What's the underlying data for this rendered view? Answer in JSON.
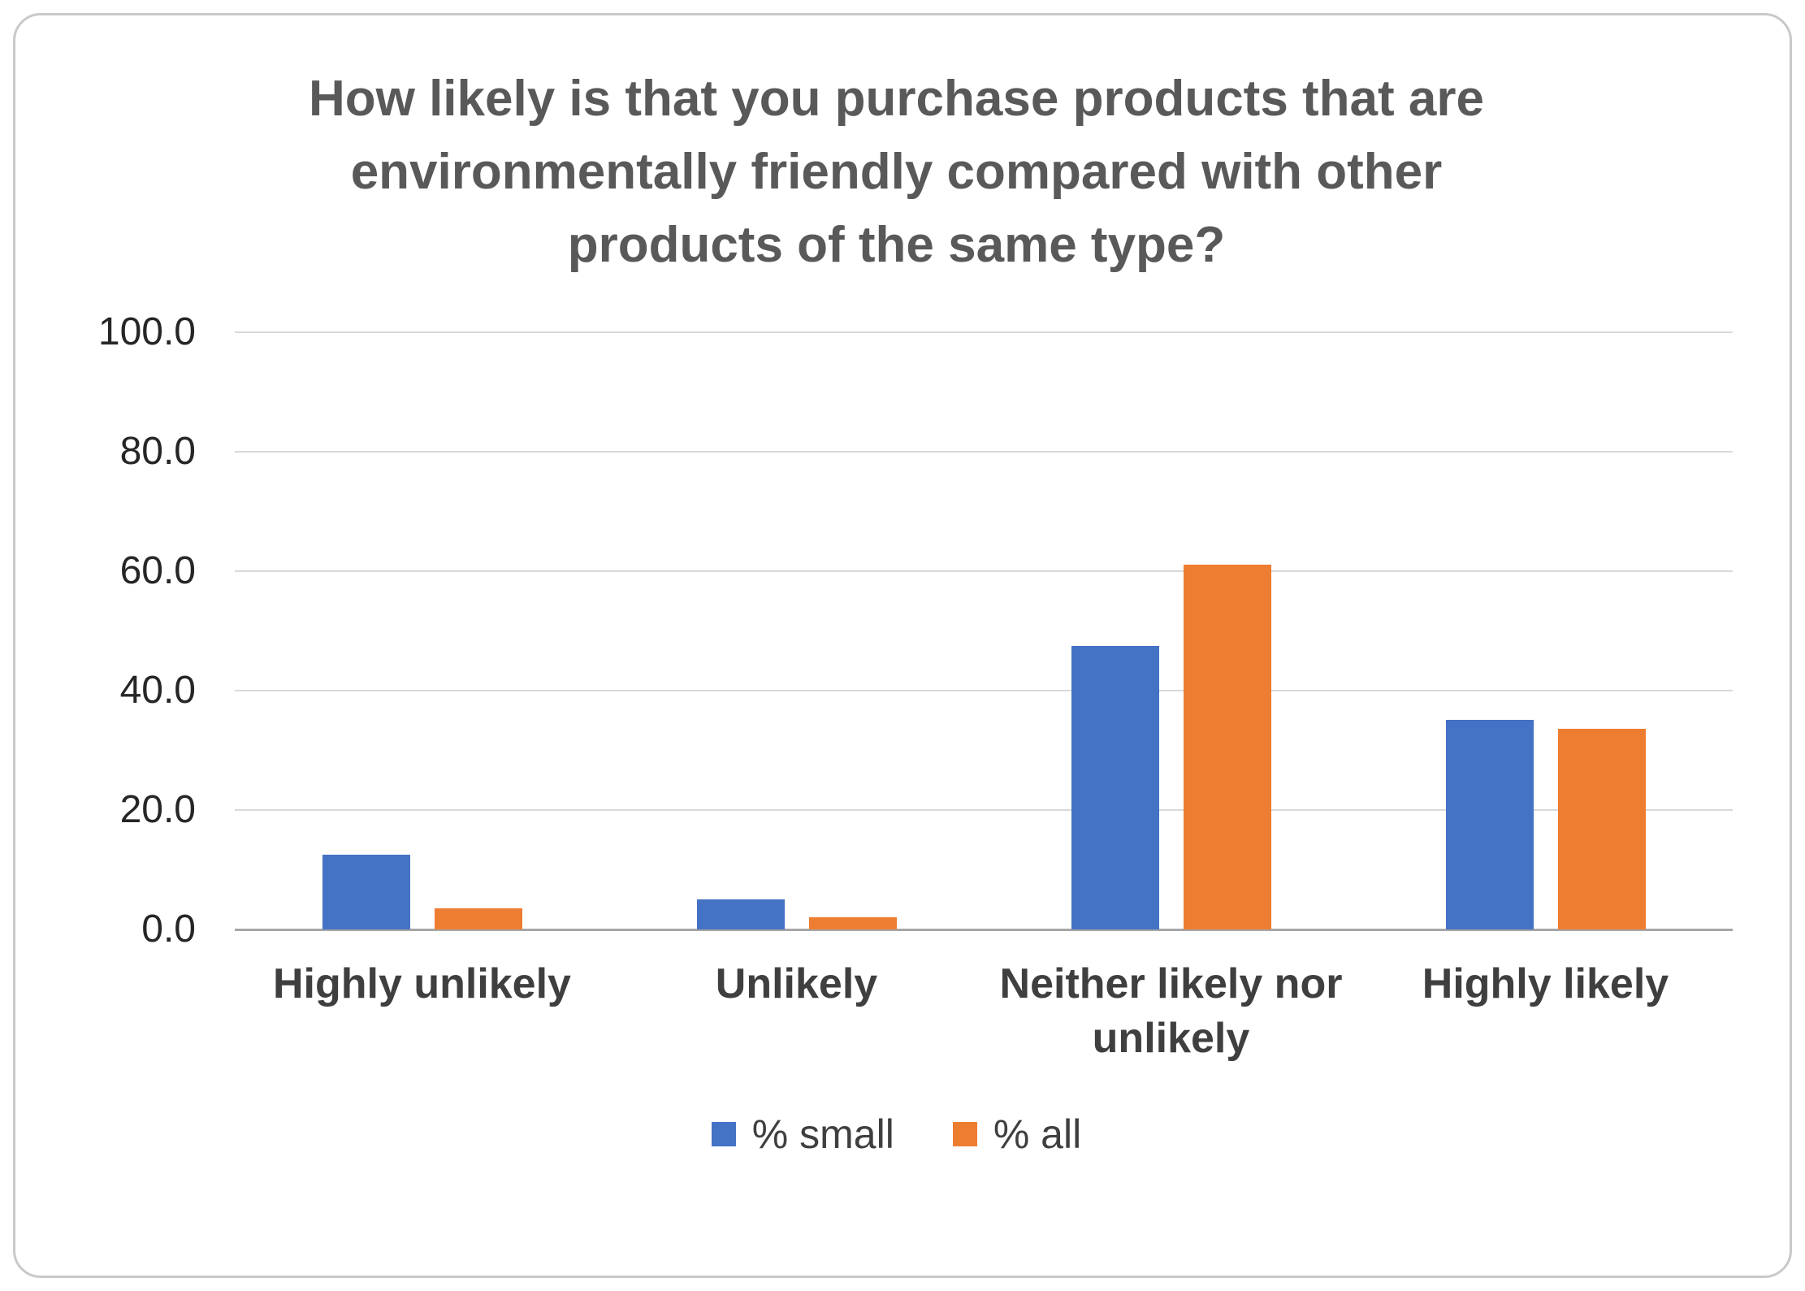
{
  "chart_data": {
    "type": "bar",
    "title": "How likely is that you purchase products that are environmentally friendly compared with other products of the same type?",
    "categories": [
      "Highly unlikely",
      "Unlikely",
      "Neither likely nor unlikely",
      "Highly likely"
    ],
    "series": [
      {
        "name": "% small",
        "color": "#4472C4",
        "values": [
          12.5,
          5.0,
          47.5,
          35.0
        ]
      },
      {
        "name": "% all",
        "color": "#ED7D31",
        "values": [
          3.5,
          2.0,
          61.0,
          33.5
        ]
      }
    ],
    "xlabel": "",
    "ylabel": "",
    "ylim": [
      0,
      100
    ],
    "yticks": [
      0,
      20,
      40,
      60,
      80,
      100
    ],
    "ytick_labels": [
      "0.0",
      "20.0",
      "40.0",
      "60.0",
      "80.0",
      "100.0"
    ],
    "grid": true,
    "legend_position": "bottom",
    "colors": {
      "title_text": "#595959",
      "axis_text": "#262626",
      "category_text": "#3f3f3f",
      "gridline": "#d9d9d9",
      "axis_line": "#a6a6a6",
      "card_border": "#c9c9c9",
      "background": "#ffffff"
    }
  }
}
